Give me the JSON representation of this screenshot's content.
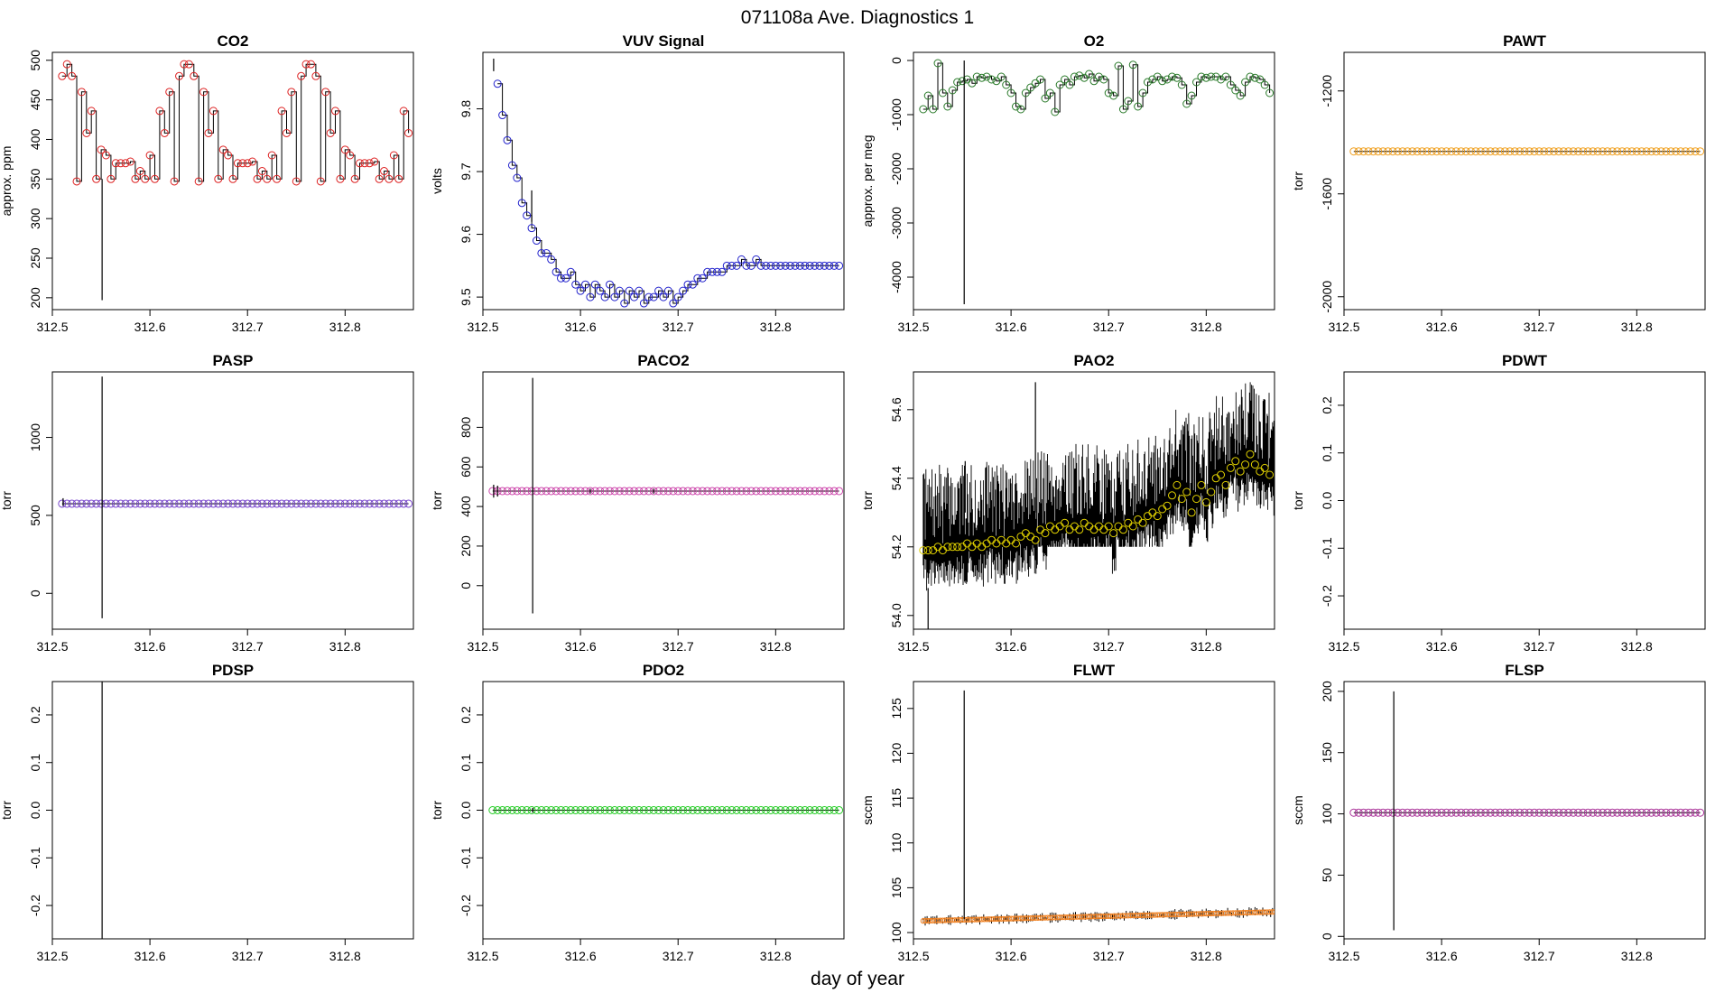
{
  "figure": {
    "title": "071108a   Ave. Diagnostics 1",
    "xlabel": "day of year"
  },
  "chart_data": [
    {
      "type": "line",
      "title": "CO2",
      "ylabel": "approx. ppm",
      "xlim": [
        312.5,
        312.87
      ],
      "ylim": [
        185,
        510
      ],
      "xticks": [
        312.5,
        312.6,
        312.7,
        312.8
      ],
      "xtick_labels": [
        "312.5",
        "312.6",
        "312.7",
        "312.8"
      ],
      "yticks": [
        200,
        250,
        300,
        350,
        400,
        450,
        500
      ],
      "ytick_labels": [
        "200",
        "250",
        "300",
        "350",
        "400",
        "450",
        "500"
      ],
      "marker_color": "#dd2222",
      "x": [
        312.51,
        312.515,
        312.52,
        312.525,
        312.53,
        312.535,
        312.54,
        312.545,
        312.55,
        312.555,
        312.56,
        312.565,
        312.57,
        312.575,
        312.58,
        312.585,
        312.59,
        312.595,
        312.6,
        312.605,
        312.61,
        312.615,
        312.62,
        312.625,
        312.63,
        312.635,
        312.64,
        312.645,
        312.65,
        312.655,
        312.66,
        312.665,
        312.67,
        312.675,
        312.68,
        312.685,
        312.69,
        312.695,
        312.7,
        312.705,
        312.71,
        312.715,
        312.72,
        312.725,
        312.73,
        312.735,
        312.74,
        312.745,
        312.75,
        312.755,
        312.76,
        312.765,
        312.77,
        312.775,
        312.78,
        312.785,
        312.79,
        312.795,
        312.8,
        312.805,
        312.81,
        312.815,
        312.82,
        312.825,
        312.83,
        312.835,
        312.84,
        312.845,
        312.85,
        312.855,
        312.86,
        312.865
      ],
      "y": [
        480,
        495,
        480,
        347,
        460,
        408,
        436,
        350,
        387,
        380,
        350,
        370,
        370,
        370,
        372,
        350,
        360,
        350,
        380,
        350,
        436,
        408,
        460,
        347,
        480,
        495,
        495,
        480,
        347,
        460,
        408,
        436,
        350,
        387,
        380,
        350,
        370,
        370,
        370,
        372,
        350,
        360,
        350,
        380,
        350,
        436,
        408,
        460,
        347,
        480,
        495,
        495,
        480,
        347,
        460,
        408,
        436,
        350,
        387,
        380,
        350,
        370,
        370,
        370,
        372,
        350,
        360,
        350,
        380,
        350,
        436,
        408
      ],
      "spikes": [
        {
          "x": 312.551,
          "from": 350,
          "to": 197
        }
      ]
    },
    {
      "type": "line",
      "title": "VUV Signal",
      "ylabel": "volts",
      "xlim": [
        312.5,
        312.87
      ],
      "ylim": [
        9.48,
        9.89
      ],
      "xticks": [
        312.5,
        312.6,
        312.7,
        312.8
      ],
      "xtick_labels": [
        "312.5",
        "312.6",
        "312.7",
        "312.8"
      ],
      "yticks": [
        9.5,
        9.6,
        9.7,
        9.8
      ],
      "ytick_labels": [
        "9.5",
        "9.6",
        "9.7",
        "9.8"
      ],
      "marker_color": "#2222cc",
      "x": [
        312.515,
        312.52,
        312.525,
        312.53,
        312.535,
        312.54,
        312.545,
        312.55,
        312.555,
        312.56,
        312.565,
        312.57,
        312.575,
        312.58,
        312.585,
        312.59,
        312.595,
        312.6,
        312.605,
        312.61,
        312.615,
        312.62,
        312.625,
        312.63,
        312.635,
        312.64,
        312.645,
        312.65,
        312.655,
        312.66,
        312.665,
        312.67,
        312.675,
        312.68,
        312.685,
        312.69,
        312.695,
        312.7,
        312.705,
        312.71,
        312.715,
        312.72,
        312.725,
        312.73,
        312.735,
        312.74,
        312.745,
        312.75,
        312.755,
        312.76,
        312.765,
        312.77,
        312.775,
        312.78,
        312.785,
        312.79,
        312.795,
        312.8,
        312.805,
        312.81,
        312.815,
        312.82,
        312.825,
        312.83,
        312.835,
        312.84,
        312.845,
        312.85,
        312.855,
        312.86,
        312.865
      ],
      "y": [
        9.84,
        9.79,
        9.75,
        9.71,
        9.69,
        9.65,
        9.63,
        9.61,
        9.59,
        9.57,
        9.57,
        9.56,
        9.54,
        9.53,
        9.53,
        9.54,
        9.52,
        9.51,
        9.52,
        9.5,
        9.52,
        9.51,
        9.5,
        9.52,
        9.5,
        9.51,
        9.49,
        9.51,
        9.5,
        9.51,
        9.49,
        9.5,
        9.5,
        9.51,
        9.5,
        9.51,
        9.49,
        9.5,
        9.51,
        9.52,
        9.52,
        9.53,
        9.53,
        9.54,
        9.54,
        9.54,
        9.54,
        9.55,
        9.55,
        9.55,
        9.56,
        9.55,
        9.55,
        9.56,
        9.55,
        9.55,
        9.55,
        9.55,
        9.55,
        9.55,
        9.55,
        9.55,
        9.55,
        9.55,
        9.55,
        9.55,
        9.55,
        9.55,
        9.55,
        9.55,
        9.55
      ],
      "spikes": [
        {
          "x": 312.55,
          "from": 9.62,
          "to": 9.67
        },
        {
          "x": 312.511,
          "from": 9.86,
          "to": 9.88
        }
      ]
    },
    {
      "type": "line",
      "title": "O2",
      "ylabel": "approx. per meg",
      "xlim": [
        312.5,
        312.87
      ],
      "ylim": [
        -4600,
        150
      ],
      "xticks": [
        312.5,
        312.6,
        312.7,
        312.8
      ],
      "xtick_labels": [
        "312.5",
        "312.6",
        "312.7",
        "312.8"
      ],
      "yticks": [
        -4000,
        -3000,
        -2000,
        -1000,
        0
      ],
      "ytick_labels": [
        "-4000",
        "-3000",
        "-2000",
        "-1000",
        "0"
      ],
      "marker_color": "#2a7a2a",
      "x": [
        312.51,
        312.515,
        312.52,
        312.525,
        312.53,
        312.535,
        312.54,
        312.545,
        312.55,
        312.555,
        312.56,
        312.565,
        312.57,
        312.575,
        312.58,
        312.585,
        312.59,
        312.595,
        312.6,
        312.605,
        312.61,
        312.615,
        312.62,
        312.625,
        312.63,
        312.635,
        312.64,
        312.645,
        312.65,
        312.655,
        312.66,
        312.665,
        312.67,
        312.675,
        312.68,
        312.685,
        312.69,
        312.695,
        312.7,
        312.705,
        312.71,
        312.715,
        312.72,
        312.725,
        312.73,
        312.735,
        312.74,
        312.745,
        312.75,
        312.755,
        312.76,
        312.765,
        312.77,
        312.775,
        312.78,
        312.785,
        312.79,
        312.795,
        312.8,
        312.805,
        312.81,
        312.815,
        312.82,
        312.825,
        312.83,
        312.835,
        312.84,
        312.845,
        312.85,
        312.855,
        312.86,
        312.865
      ],
      "y": [
        -900,
        -650,
        -900,
        -50,
        -600,
        -850,
        -550,
        -400,
        -380,
        -350,
        -420,
        -300,
        -320,
        -300,
        -350,
        -380,
        -300,
        -450,
        -600,
        -850,
        -900,
        -600,
        -500,
        -420,
        -350,
        -700,
        -600,
        -950,
        -450,
        -350,
        -450,
        -300,
        -280,
        -320,
        -250,
        -380,
        -300,
        -350,
        -600,
        -650,
        -100,
        -900,
        -750,
        -80,
        -850,
        -600,
        -400,
        -350,
        -300,
        -380,
        -350,
        -300,
        -320,
        -450,
        -800,
        -650,
        -400,
        -300,
        -320,
        -300,
        -300,
        -350,
        -300,
        -450,
        -550,
        -650,
        -400,
        -300,
        -320,
        -350,
        -450,
        -600
      ],
      "spikes": [
        {
          "x": 312.552,
          "from": 0,
          "to": -4500
        }
      ]
    },
    {
      "type": "line",
      "title": "PAWT",
      "ylabel": "torr",
      "xlim": [
        312.5,
        312.87
      ],
      "ylim": [
        -2050,
        -1050
      ],
      "xticks": [
        312.5,
        312.6,
        312.7,
        312.8
      ],
      "xtick_labels": [
        "312.5",
        "312.6",
        "312.7",
        "312.8"
      ],
      "yticks": [
        -2000,
        -1600,
        -1200
      ],
      "ytick_labels": [
        "-2000",
        "-1600",
        "-1200"
      ],
      "marker_color": "#f0a020",
      "flat": {
        "value": -1435,
        "x0": 312.51,
        "x1": 312.865,
        "step": 0.005
      },
      "spikes": []
    },
    {
      "type": "line",
      "title": "PASP",
      "ylabel": "torr",
      "xlim": [
        312.5,
        312.87
      ],
      "ylim": [
        -230,
        1420
      ],
      "xticks": [
        312.5,
        312.6,
        312.7,
        312.8
      ],
      "xtick_labels": [
        "312.5",
        "312.6",
        "312.7",
        "312.8"
      ],
      "yticks": [
        0,
        500,
        1000
      ],
      "ytick_labels": [
        "0",
        "500",
        "1000"
      ],
      "marker_color": "#7744cc",
      "flat": {
        "value": 575,
        "x0": 312.51,
        "x1": 312.865,
        "step": 0.005
      },
      "spikes": [
        {
          "x": 312.551,
          "from": 1390,
          "to": -160
        },
        {
          "x": 312.511,
          "from": 560,
          "to": 610
        }
      ]
    },
    {
      "type": "line",
      "title": "PACO2",
      "ylabel": "torr",
      "xlim": [
        312.5,
        312.87
      ],
      "ylim": [
        -220,
        1080
      ],
      "xticks": [
        312.5,
        312.6,
        312.7,
        312.8
      ],
      "xtick_labels": [
        "312.5",
        "312.6",
        "312.7",
        "312.8"
      ],
      "yticks": [
        0,
        200,
        400,
        600,
        800
      ],
      "ytick_labels": [
        "0",
        "200",
        "400",
        "600",
        "800"
      ],
      "marker_color": "#cc44aa",
      "flat": {
        "value": 478,
        "x0": 312.51,
        "x1": 312.865,
        "step": 0.005
      },
      "spikes": [
        {
          "x": 312.551,
          "from": 1050,
          "to": -140
        },
        {
          "x": 312.511,
          "from": 445,
          "to": 510
        },
        {
          "x": 312.515,
          "from": 450,
          "to": 505
        },
        {
          "x": 312.61,
          "from": 465,
          "to": 490
        },
        {
          "x": 312.675,
          "from": 465,
          "to": 490
        }
      ]
    },
    {
      "type": "line",
      "title": "PAO2",
      "ylabel": "torr",
      "xlim": [
        312.5,
        312.87
      ],
      "ylim": [
        53.96,
        54.71
      ],
      "xticks": [
        312.5,
        312.6,
        312.7,
        312.8
      ],
      "xtick_labels": [
        "312.5",
        "312.6",
        "312.7",
        "312.8"
      ],
      "yticks": [
        54.0,
        54.2,
        54.4,
        54.6
      ],
      "ytick_labels": [
        "54.0",
        "54.2",
        "54.4",
        "54.6"
      ],
      "marker_color": "#e0d000",
      "x": [
        312.51,
        312.515,
        312.52,
        312.525,
        312.53,
        312.535,
        312.54,
        312.545,
        312.55,
        312.555,
        312.56,
        312.565,
        312.57,
        312.575,
        312.58,
        312.585,
        312.59,
        312.595,
        312.6,
        312.605,
        312.61,
        312.615,
        312.62,
        312.625,
        312.63,
        312.635,
        312.64,
        312.645,
        312.65,
        312.655,
        312.66,
        312.665,
        312.67,
        312.675,
        312.68,
        312.685,
        312.69,
        312.695,
        312.7,
        312.705,
        312.71,
        312.715,
        312.72,
        312.725,
        312.73,
        312.735,
        312.74,
        312.745,
        312.75,
        312.755,
        312.76,
        312.765,
        312.77,
        312.775,
        312.78,
        312.785,
        312.79,
        312.795,
        312.8,
        312.805,
        312.81,
        312.815,
        312.82,
        312.825,
        312.83,
        312.835,
        312.84,
        312.845,
        312.85,
        312.855,
        312.86,
        312.865
      ],
      "y": [
        54.19,
        54.19,
        54.19,
        54.2,
        54.19,
        54.2,
        54.2,
        54.2,
        54.2,
        54.21,
        54.2,
        54.21,
        54.2,
        54.21,
        54.22,
        54.21,
        54.22,
        54.21,
        54.22,
        54.21,
        54.23,
        54.24,
        54.23,
        54.22,
        54.25,
        54.24,
        54.26,
        54.25,
        54.26,
        54.27,
        54.25,
        54.26,
        54.25,
        54.27,
        54.26,
        54.25,
        54.26,
        54.25,
        54.26,
        54.24,
        54.26,
        54.25,
        54.27,
        54.26,
        54.28,
        54.27,
        54.29,
        54.3,
        54.29,
        54.31,
        54.32,
        54.35,
        54.38,
        54.34,
        54.36,
        54.3,
        54.34,
        54.38,
        54.33,
        54.36,
        54.4,
        54.41,
        54.38,
        54.43,
        54.45,
        54.42,
        54.44,
        54.47,
        54.44,
        54.42,
        54.43,
        54.41
      ],
      "noise": {
        "seed": 7,
        "x0": 312.51,
        "x1": 312.87,
        "count": 520
      },
      "spikes": [
        {
          "x": 312.515,
          "from": 54.08,
          "to": 53.95
        },
        {
          "x": 312.553,
          "from": 54.3,
          "to": 54.45
        },
        {
          "x": 312.625,
          "from": 54.3,
          "to": 54.68
        }
      ]
    },
    {
      "type": "line",
      "title": "PDWT",
      "ylabel": "torr",
      "xlim": [
        312.5,
        312.87
      ],
      "ylim": [
        -0.27,
        0.27
      ],
      "xticks": [
        312.5,
        312.6,
        312.7,
        312.8
      ],
      "xtick_labels": [
        "312.5",
        "312.6",
        "312.7",
        "312.8"
      ],
      "yticks": [
        -0.2,
        -0.1,
        0.0,
        0.1,
        0.2
      ],
      "ytick_labels": [
        "-0.2",
        "-0.1",
        "0.0",
        "0.1",
        "0.2"
      ],
      "marker_color": "#000000",
      "spikes": []
    },
    {
      "type": "line",
      "title": "PDSP",
      "ylabel": "torr",
      "xlim": [
        312.5,
        312.87
      ],
      "ylim": [
        -0.27,
        0.27
      ],
      "xticks": [
        312.5,
        312.6,
        312.7,
        312.8
      ],
      "xtick_labels": [
        "312.5",
        "312.6",
        "312.7",
        "312.8"
      ],
      "yticks": [
        -0.2,
        -0.1,
        0.0,
        0.1,
        0.2
      ],
      "ytick_labels": [
        "-0.2",
        "-0.1",
        "0.0",
        "0.1",
        "0.2"
      ],
      "marker_color": "#000000",
      "spikes": [
        {
          "x": 312.551,
          "from": 0.27,
          "to": -0.27
        }
      ]
    },
    {
      "type": "line",
      "title": "PDO2",
      "ylabel": "torr",
      "xlim": [
        312.5,
        312.87
      ],
      "ylim": [
        -0.27,
        0.27
      ],
      "xticks": [
        312.5,
        312.6,
        312.7,
        312.8
      ],
      "xtick_labels": [
        "312.5",
        "312.6",
        "312.7",
        "312.8"
      ],
      "yticks": [
        -0.2,
        -0.1,
        0.0,
        0.1,
        0.2
      ],
      "ytick_labels": [
        "-0.2",
        "-0.1",
        "0.0",
        "0.1",
        "0.2"
      ],
      "marker_color": "#22cc22",
      "flat": {
        "value": 0.0,
        "x0": 312.51,
        "x1": 312.865,
        "step": 0.005
      },
      "spikes": [
        {
          "x": 312.551,
          "from": -0.005,
          "to": 0.005
        }
      ]
    },
    {
      "type": "line",
      "title": "FLWT",
      "ylabel": "sccm",
      "xlim": [
        312.5,
        312.87
      ],
      "ylim": [
        99.3,
        128
      ],
      "xticks": [
        312.5,
        312.6,
        312.7,
        312.8
      ],
      "xtick_labels": [
        "312.5",
        "312.6",
        "312.7",
        "312.8"
      ],
      "yticks": [
        100,
        105,
        110,
        115,
        120,
        125
      ],
      "ytick_labels": [
        "100",
        "105",
        "110",
        "115",
        "120",
        "125"
      ],
      "marker_color": "#f08020",
      "flat": {
        "value": 101.8,
        "x0": 312.51,
        "x1": 312.87,
        "step": 0.002,
        "slope": 2.0
      },
      "noise_small": {
        "seed": 3,
        "amp": 0.6
      },
      "spikes": [
        {
          "x": 312.552,
          "from": 101.5,
          "to": 127
        }
      ]
    },
    {
      "type": "line",
      "title": "FLSP",
      "ylabel": "sccm",
      "xlim": [
        312.5,
        312.87
      ],
      "ylim": [
        -2,
        208
      ],
      "xticks": [
        312.5,
        312.6,
        312.7,
        312.8
      ],
      "xtick_labels": [
        "312.5",
        "312.6",
        "312.7",
        "312.8"
      ],
      "yticks": [
        0,
        50,
        100,
        150,
        200
      ],
      "ytick_labels": [
        "0",
        "50",
        "100",
        "150",
        "200"
      ],
      "marker_color": "#aa3399",
      "flat": {
        "value": 101,
        "x0": 312.51,
        "x1": 312.865,
        "step": 0.005
      },
      "spikes": [
        {
          "x": 312.551,
          "from": 200,
          "to": 5
        }
      ]
    }
  ]
}
